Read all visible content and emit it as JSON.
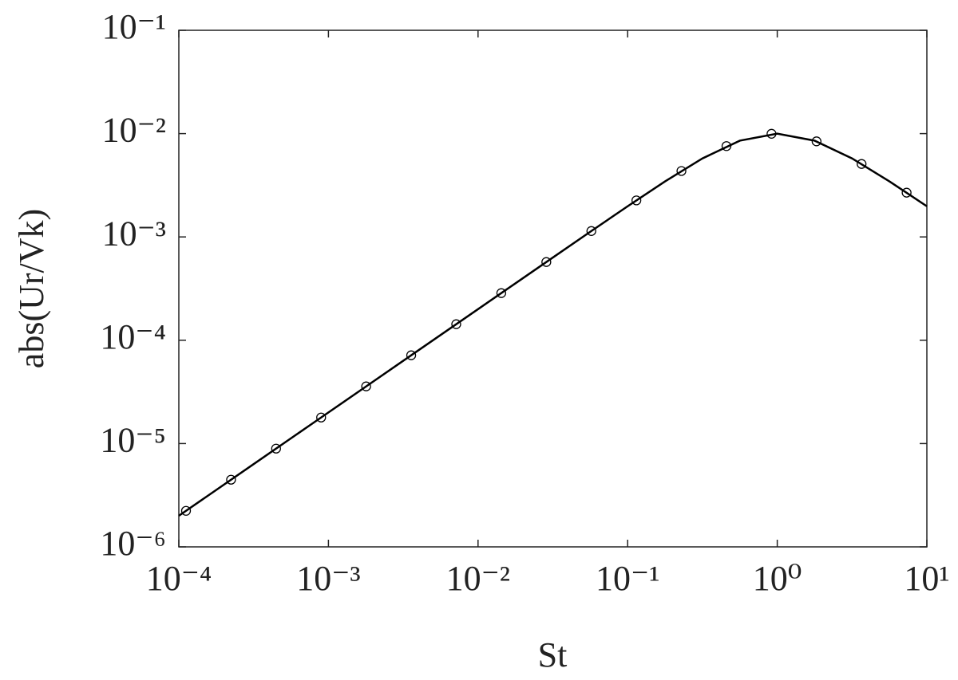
{
  "chart_data": {
    "type": "line",
    "xlabel": "St",
    "ylabel": "abs(Ur/Vk)",
    "xscale": "log",
    "yscale": "log",
    "xlim": [
      0.0001,
      10
    ],
    "ylim": [
      1e-06,
      0.1
    ],
    "xticks": [
      {
        "value": 0.0001,
        "label": "10⁻⁴"
      },
      {
        "value": 0.001,
        "label": "10⁻³"
      },
      {
        "value": 0.01,
        "label": "10⁻²"
      },
      {
        "value": 0.1,
        "label": "10⁻¹"
      },
      {
        "value": 1,
        "label": "10⁰"
      },
      {
        "value": 10,
        "label": "10¹"
      }
    ],
    "yticks": [
      {
        "value": 1e-06,
        "label": "10⁻⁶"
      },
      {
        "value": 1e-05,
        "label": "10⁻⁵"
      },
      {
        "value": 0.0001,
        "label": "10⁻⁴"
      },
      {
        "value": 0.001,
        "label": "10⁻³"
      },
      {
        "value": 0.01,
        "label": "10⁻²"
      },
      {
        "value": 0.1,
        "label": "10⁻¹"
      }
    ],
    "color": "#000000",
    "curve": {
      "x": [
        0.0001,
        0.0001778,
        0.0003162,
        0.0005623,
        0.001,
        0.001778,
        0.003162,
        0.005623,
        0.01,
        0.01778,
        0.03162,
        0.05623,
        0.1,
        0.1778,
        0.3162,
        0.5623,
        1,
        1.778,
        3.162,
        5.623,
        10
      ],
      "values": [
        2e-06,
        3.556e-06,
        6.325e-06,
        1.125e-05,
        2e-05,
        3.556e-05,
        6.325e-05,
        0.0001125,
        0.00019998,
        0.0003555,
        0.0006319,
        0.001121,
        0.00198,
        0.003447,
        0.00575,
        0.008544,
        0.01,
        0.008544,
        0.00575,
        0.003447,
        0.00198
      ]
    },
    "markers": {
      "x": [
        0.0001117,
        0.0002234,
        0.0004468,
        0.0008936,
        0.001787,
        0.003574,
        0.007149,
        0.0143,
        0.0286,
        0.0572,
        0.1144,
        0.2288,
        0.4576,
        0.9152,
        1.8304,
        3.6608,
        7.3216
      ],
      "values": [
        2.234e-06,
        4.468e-06,
        8.936e-06,
        1.787e-05,
        3.574e-05,
        7.148e-05,
        0.000143,
        0.0002859,
        0.0005715,
        0.00114,
        0.002258,
        0.004348,
        0.007568,
        0.009961,
        0.008415,
        0.005084,
        0.002682
      ]
    }
  }
}
